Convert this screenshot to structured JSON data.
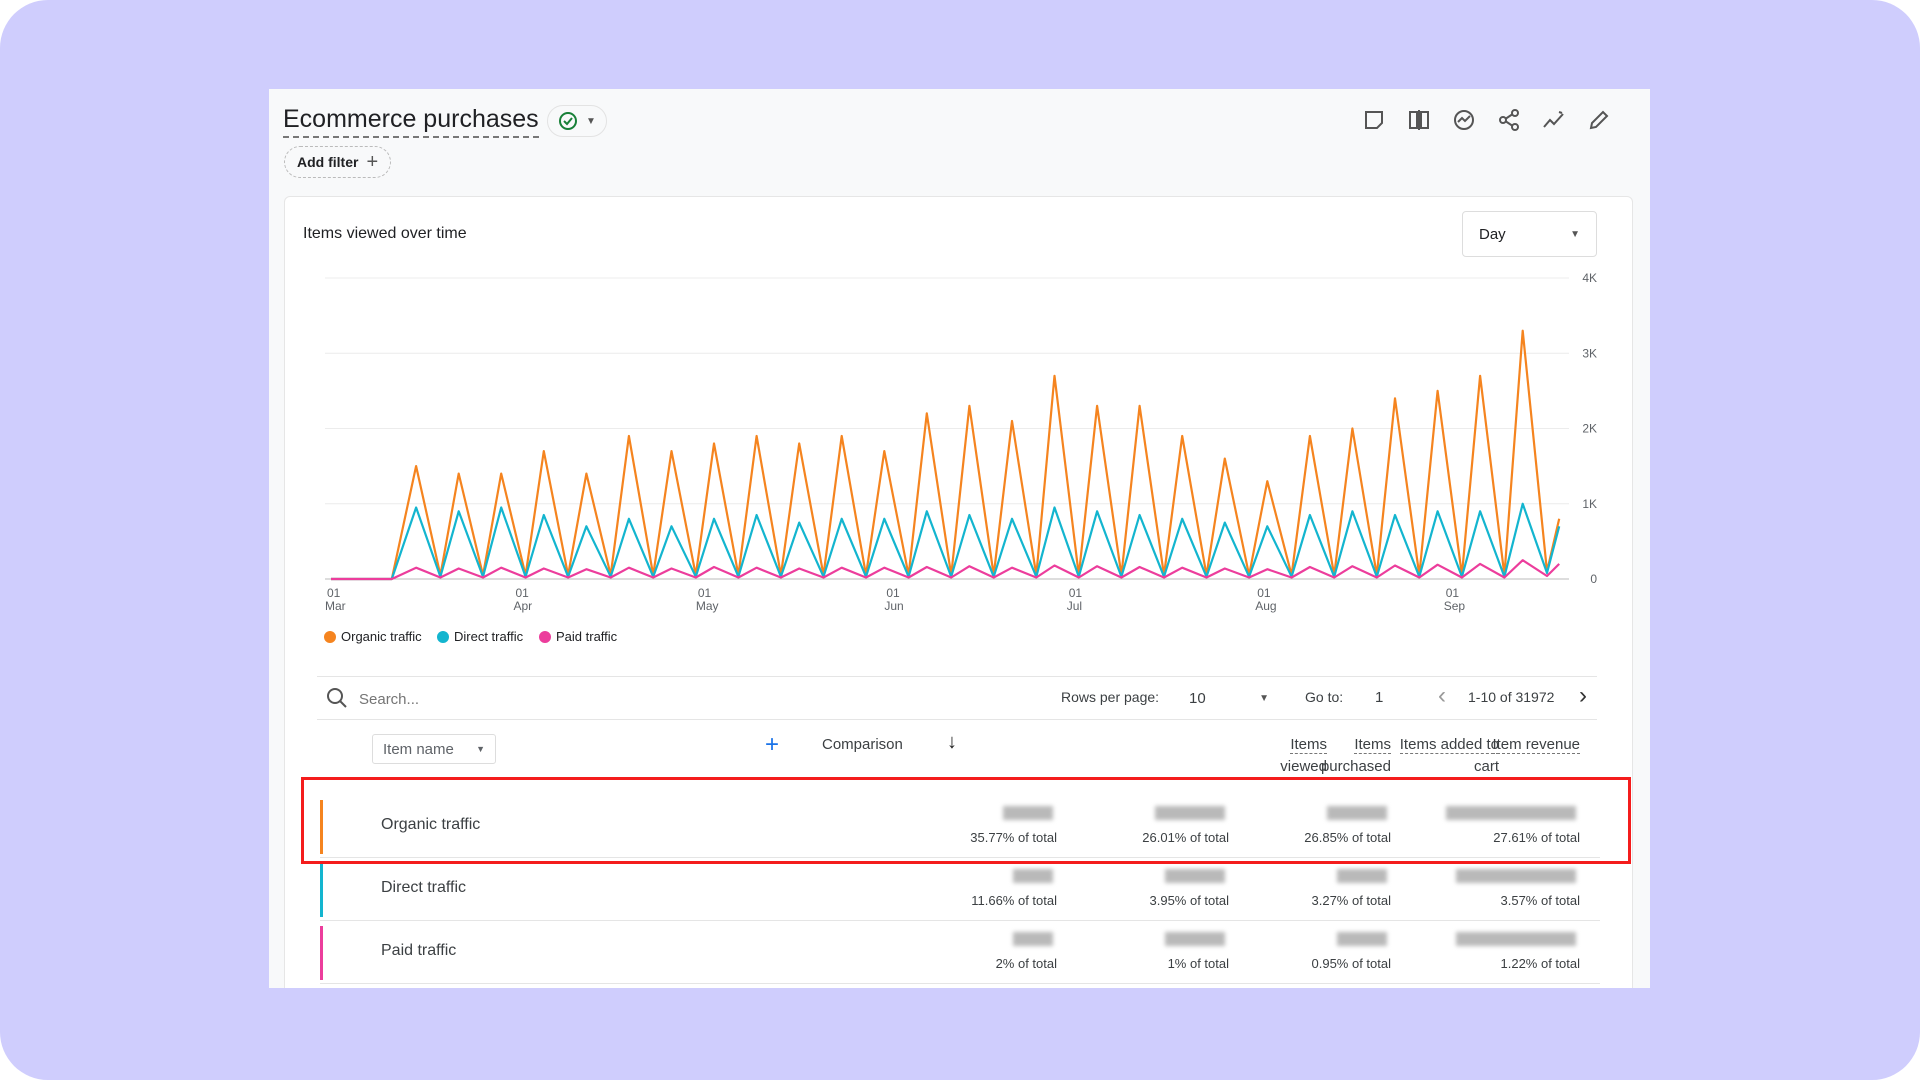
{
  "header": {
    "title": "Ecommerce purchases",
    "add_filter": "Add filter",
    "toolbar": [
      "note-icon",
      "compare-icon",
      "insights-icon",
      "share-icon",
      "trend-icon",
      "edit-icon"
    ]
  },
  "chart_card": {
    "title": "Items viewed over time",
    "granularity": "Day"
  },
  "chart_data": {
    "type": "line",
    "title": "Items viewed over time",
    "x_ticks": [
      {
        "date": "Mar 01",
        "label1": "01",
        "label2": "Mar"
      },
      {
        "date": "Apr 01",
        "label1": "01",
        "label2": "Apr"
      },
      {
        "date": "May 01",
        "label1": "01",
        "label2": "May"
      },
      {
        "date": "Jun 01",
        "label1": "01",
        "label2": "Jun"
      },
      {
        "date": "Jul 01",
        "label1": "01",
        "label2": "Jul"
      },
      {
        "date": "Aug 01",
        "label1": "01",
        "label2": "Aug"
      },
      {
        "date": "Sep 01",
        "label1": "01",
        "label2": "Sep"
      }
    ],
    "y_ticks": [
      "0",
      "1K",
      "2K",
      "3K",
      "4K"
    ],
    "ylim": [
      0,
      4000
    ],
    "grid": true,
    "legend_position": "bottom-left",
    "x": [
      "Mar 01",
      "Mar 11",
      "Mar 15",
      "Mar 19",
      "Mar 22",
      "Mar 26",
      "Mar 29",
      "Apr 02",
      "Apr 05",
      "Apr 09",
      "Apr 12",
      "Apr 16",
      "Apr 19",
      "Apr 23",
      "Apr 26",
      "Apr 30",
      "May 03",
      "May 07",
      "May 10",
      "May 14",
      "May 17",
      "May 21",
      "May 24",
      "May 28",
      "May 31",
      "Jun 04",
      "Jun 07",
      "Jun 11",
      "Jun 14",
      "Jun 18",
      "Jun 21",
      "Jun 25",
      "Jun 28",
      "Jul 02",
      "Jul 05",
      "Jul 09",
      "Jul 12",
      "Jul 16",
      "Jul 19",
      "Jul 23",
      "Jul 26",
      "Jul 30",
      "Aug 02",
      "Aug 06",
      "Aug 09",
      "Aug 13",
      "Aug 16",
      "Aug 20",
      "Aug 23",
      "Aug 27",
      "Aug 30",
      "Sep 03",
      "Sep 06",
      "Sep 10",
      "Sep 13",
      "Sep 17",
      "Sep 19"
    ],
    "series": [
      {
        "name": "Organic traffic",
        "color": "#f5841f",
        "values": [
          0,
          0,
          1500,
          50,
          1400,
          50,
          1400,
          50,
          1700,
          50,
          1400,
          50,
          1900,
          50,
          1700,
          50,
          1800,
          50,
          1900,
          50,
          1800,
          50,
          1900,
          50,
          1700,
          50,
          2200,
          50,
          2300,
          50,
          2100,
          50,
          2700,
          50,
          2300,
          50,
          2300,
          50,
          1900,
          50,
          1600,
          50,
          1300,
          50,
          1900,
          50,
          2000,
          50,
          2400,
          50,
          2500,
          50,
          2700,
          50,
          3300,
          100,
          800
        ]
      },
      {
        "name": "Direct traffic",
        "color": "#13b5cf",
        "values": [
          0,
          0,
          950,
          30,
          900,
          30,
          950,
          30,
          850,
          30,
          700,
          30,
          800,
          30,
          700,
          30,
          800,
          30,
          850,
          30,
          750,
          30,
          800,
          30,
          800,
          30,
          900,
          30,
          850,
          30,
          800,
          30,
          950,
          30,
          900,
          30,
          850,
          30,
          800,
          30,
          750,
          30,
          700,
          30,
          850,
          30,
          900,
          30,
          850,
          30,
          900,
          30,
          900,
          30,
          1000,
          80,
          700
        ]
      },
      {
        "name": "Paid traffic",
        "color": "#ec3d9c",
        "values": [
          0,
          0,
          150,
          20,
          140,
          20,
          150,
          20,
          140,
          20,
          130,
          20,
          150,
          20,
          140,
          20,
          160,
          20,
          150,
          20,
          140,
          20,
          150,
          20,
          150,
          20,
          160,
          20,
          170,
          20,
          150,
          20,
          180,
          20,
          170,
          20,
          160,
          20,
          150,
          20,
          140,
          20,
          130,
          20,
          160,
          20,
          170,
          20,
          180,
          20,
          190,
          20,
          200,
          20,
          250,
          40,
          200
        ]
      }
    ]
  },
  "table": {
    "search_placeholder": "Search...",
    "rows_per_page_label": "Rows per page:",
    "rows_per_page": "10",
    "goto_label": "Go to:",
    "goto_value": "1",
    "range": "1-10 of 31972",
    "dimension": "Item name",
    "comparison": "Comparison",
    "columns": [
      {
        "l1": "Items",
        "l2": "viewed"
      },
      {
        "l1": "Items added to",
        "l2": "cart"
      },
      {
        "l1": "Items",
        "l2": "purchased"
      },
      {
        "l1": "Item revenue",
        "l2": ""
      }
    ],
    "rows": [
      {
        "name": "Organic traffic",
        "color": "#f5841f",
        "pcts": [
          "35.77% of total",
          "26.01% of total",
          "26.85% of total",
          "27.61% of total"
        ]
      },
      {
        "name": "Direct traffic",
        "color": "#13b5cf",
        "pcts": [
          "11.66% of total",
          "3.95% of total",
          "3.27% of total",
          "3.57% of total"
        ]
      },
      {
        "name": "Paid traffic",
        "color": "#ec3d9c",
        "pcts": [
          "2% of total",
          "1% of total",
          "0.95% of total",
          "1.22% of total"
        ]
      }
    ]
  }
}
